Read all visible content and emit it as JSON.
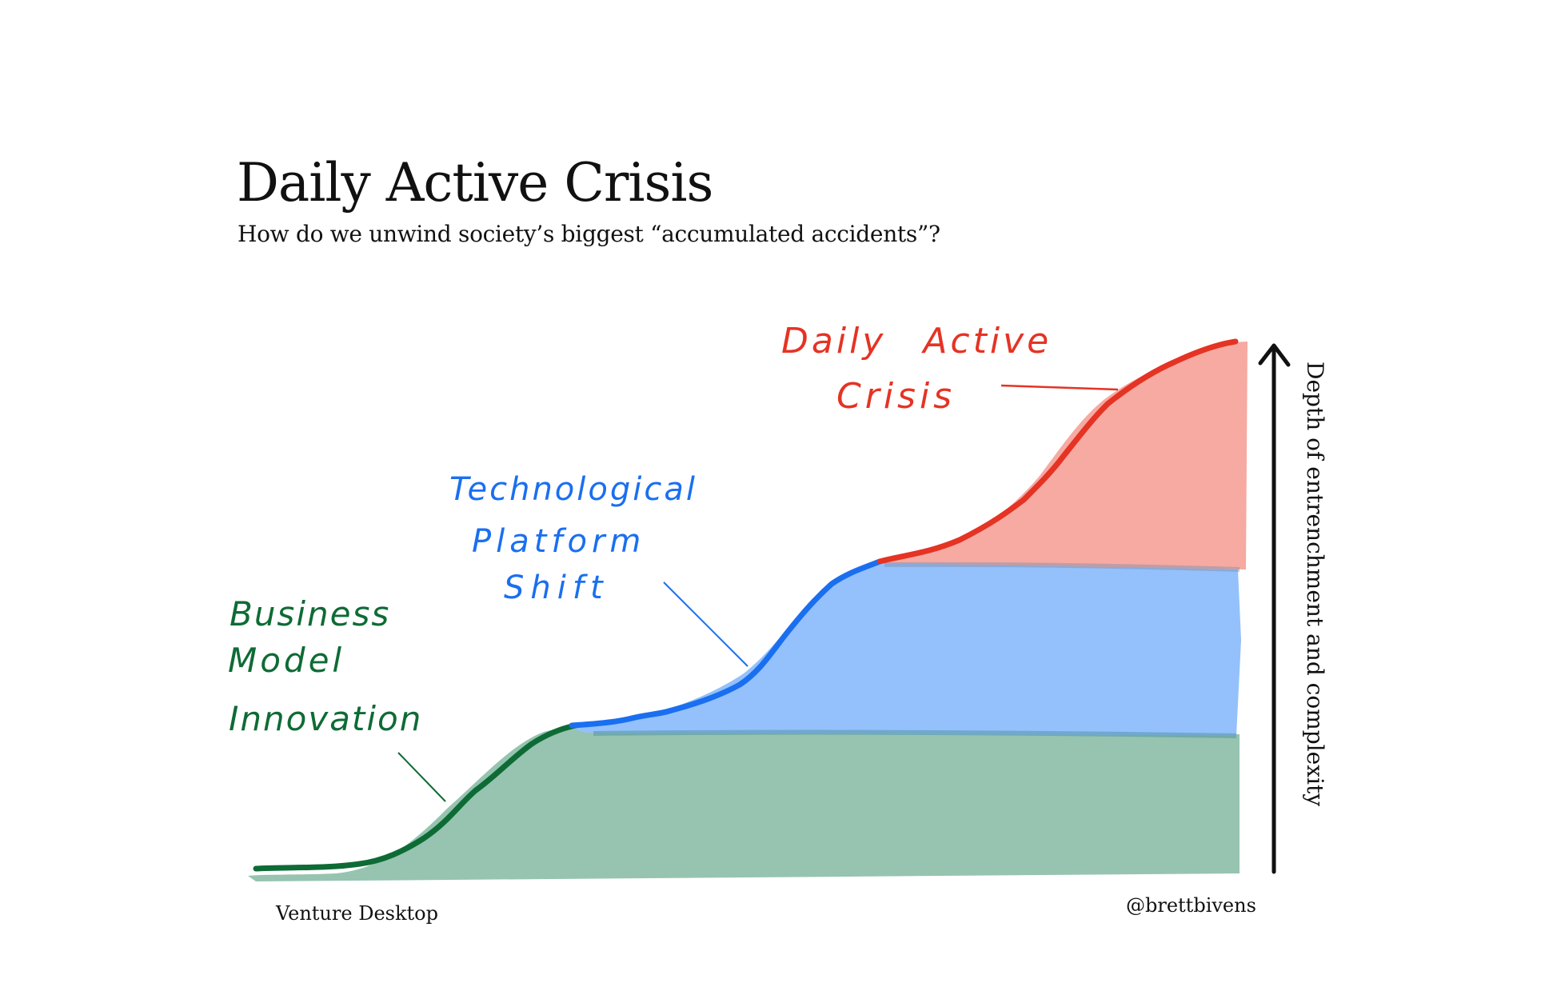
{
  "header": {
    "title": "Daily Active Crisis",
    "subtitle": "How do we unwind society’s biggest “accumulated accidents”?"
  },
  "annotations": {
    "business": [
      "Business",
      "Model",
      "Innovation"
    ],
    "tech": [
      "Technological",
      "Platform",
      "Shift"
    ],
    "crisis": [
      "Daily Active",
      "Crisis"
    ]
  },
  "axis": {
    "label": "Depth of entrenchment and complexity"
  },
  "footer": {
    "left": "Venture Desktop",
    "right": "@brettbivens"
  },
  "colors": {
    "green_line": "#0e6b35",
    "green_fill": "#96c4b0",
    "blue_line": "#1a6ff0",
    "blue_fill": "#94c1fb",
    "red_line": "#e53324",
    "red_fill": "#f6aaa2",
    "text": "#111111"
  }
}
